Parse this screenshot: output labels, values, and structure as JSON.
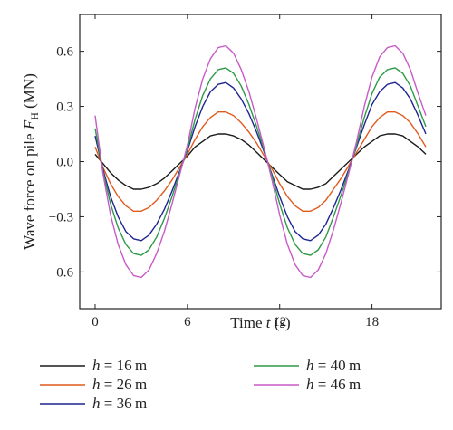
{
  "chart_data": {
    "type": "line",
    "xlabel": {
      "pre": "Time ",
      "var": "t",
      "post": " (s)"
    },
    "ylabel": {
      "pre": "Wave force on pile ",
      "var": "F",
      "sub": "H",
      "post": " (MN)"
    },
    "xlim": [
      -1,
      22.5
    ],
    "ylim": [
      -0.8,
      0.8
    ],
    "xticks": [
      0,
      6,
      12,
      18
    ],
    "yticks": [
      -0.6,
      -0.3,
      0.0,
      0.3,
      0.6
    ],
    "ytick_labels": [
      "−0.6",
      "−0.3",
      "0.0",
      "0.3",
      "0.6"
    ],
    "xtick_labels": [
      "0",
      "6",
      "12",
      "18"
    ],
    "x": [
      0,
      0.5,
      1,
      1.5,
      2,
      2.5,
      3,
      3.5,
      4,
      4.5,
      5,
      5.5,
      6,
      6.5,
      7,
      7.5,
      8,
      8.5,
      9,
      9.5,
      10,
      10.5,
      11,
      11.5,
      12,
      12.5,
      13,
      13.5,
      14,
      14.5,
      15,
      15.5,
      16,
      16.5,
      17,
      17.5,
      18,
      18.5,
      19,
      19.5,
      20,
      20.5,
      21,
      21.5
    ],
    "series": [
      {
        "name": "h = 16 m",
        "legend_var": "h",
        "legend_val": "16",
        "color": "#1a1a1a",
        "values": [
          0.04,
          -0.01,
          -0.06,
          -0.1,
          -0.13,
          -0.15,
          -0.15,
          -0.14,
          -0.12,
          -0.09,
          -0.05,
          -0.01,
          0.03,
          0.08,
          0.11,
          0.14,
          0.15,
          0.15,
          0.14,
          0.12,
          0.09,
          0.05,
          0.01,
          -0.03,
          -0.07,
          -0.11,
          -0.13,
          -0.15,
          -0.15,
          -0.14,
          -0.12,
          -0.08,
          -0.04,
          0.0,
          0.04,
          0.08,
          0.11,
          0.14,
          0.15,
          0.15,
          0.14,
          0.11,
          0.08,
          0.04
        ]
      },
      {
        "name": "h = 26 m",
        "legend_var": "h",
        "legend_val": "26",
        "color": "#e05a1e",
        "values": [
          0.08,
          -0.03,
          -0.12,
          -0.19,
          -0.24,
          -0.27,
          -0.27,
          -0.25,
          -0.21,
          -0.16,
          -0.1,
          -0.03,
          0.04,
          0.12,
          0.19,
          0.24,
          0.27,
          0.27,
          0.25,
          0.21,
          0.16,
          0.1,
          0.03,
          -0.04,
          -0.12,
          -0.19,
          -0.24,
          -0.27,
          -0.27,
          -0.25,
          -0.21,
          -0.15,
          -0.09,
          -0.02,
          0.05,
          0.12,
          0.19,
          0.24,
          0.27,
          0.27,
          0.25,
          0.21,
          0.15,
          0.08
        ]
      },
      {
        "name": "h = 36 m",
        "legend_var": "h",
        "legend_val": "36",
        "color": "#1f2590",
        "values": [
          0.14,
          -0.04,
          -0.19,
          -0.3,
          -0.38,
          -0.42,
          -0.43,
          -0.4,
          -0.34,
          -0.26,
          -0.16,
          -0.05,
          0.06,
          0.19,
          0.3,
          0.38,
          0.42,
          0.43,
          0.4,
          0.34,
          0.26,
          0.16,
          0.05,
          -0.07,
          -0.19,
          -0.3,
          -0.38,
          -0.42,
          -0.43,
          -0.4,
          -0.34,
          -0.25,
          -0.15,
          -0.04,
          0.08,
          0.2,
          0.31,
          0.38,
          0.42,
          0.43,
          0.4,
          0.34,
          0.25,
          0.15
        ]
      },
      {
        "name": "h = 40 m",
        "legend_var": "h",
        "legend_val": "40",
        "color": "#2e9a48",
        "values": [
          0.18,
          -0.05,
          -0.23,
          -0.36,
          -0.45,
          -0.5,
          -0.51,
          -0.48,
          -0.41,
          -0.31,
          -0.19,
          -0.06,
          0.07,
          0.23,
          0.36,
          0.45,
          0.5,
          0.51,
          0.48,
          0.41,
          0.31,
          0.19,
          0.06,
          -0.08,
          -0.23,
          -0.36,
          -0.45,
          -0.5,
          -0.51,
          -0.48,
          -0.41,
          -0.3,
          -0.18,
          -0.05,
          0.09,
          0.24,
          0.37,
          0.46,
          0.5,
          0.51,
          0.48,
          0.41,
          0.3,
          0.19
        ]
      },
      {
        "name": "h = 46 m",
        "legend_var": "h",
        "legend_val": "46",
        "color": "#c85ac8",
        "values": [
          0.25,
          -0.06,
          -0.29,
          -0.45,
          -0.56,
          -0.62,
          -0.63,
          -0.59,
          -0.5,
          -0.38,
          -0.23,
          -0.07,
          0.09,
          0.29,
          0.45,
          0.56,
          0.62,
          0.63,
          0.59,
          0.5,
          0.38,
          0.23,
          0.07,
          -0.1,
          -0.29,
          -0.45,
          -0.56,
          -0.62,
          -0.63,
          -0.59,
          -0.5,
          -0.37,
          -0.22,
          -0.06,
          0.11,
          0.3,
          0.46,
          0.57,
          0.62,
          0.63,
          0.59,
          0.5,
          0.37,
          0.25
        ]
      }
    ],
    "legend": {
      "unit": "m",
      "placement": "bottom"
    },
    "grid": false
  }
}
